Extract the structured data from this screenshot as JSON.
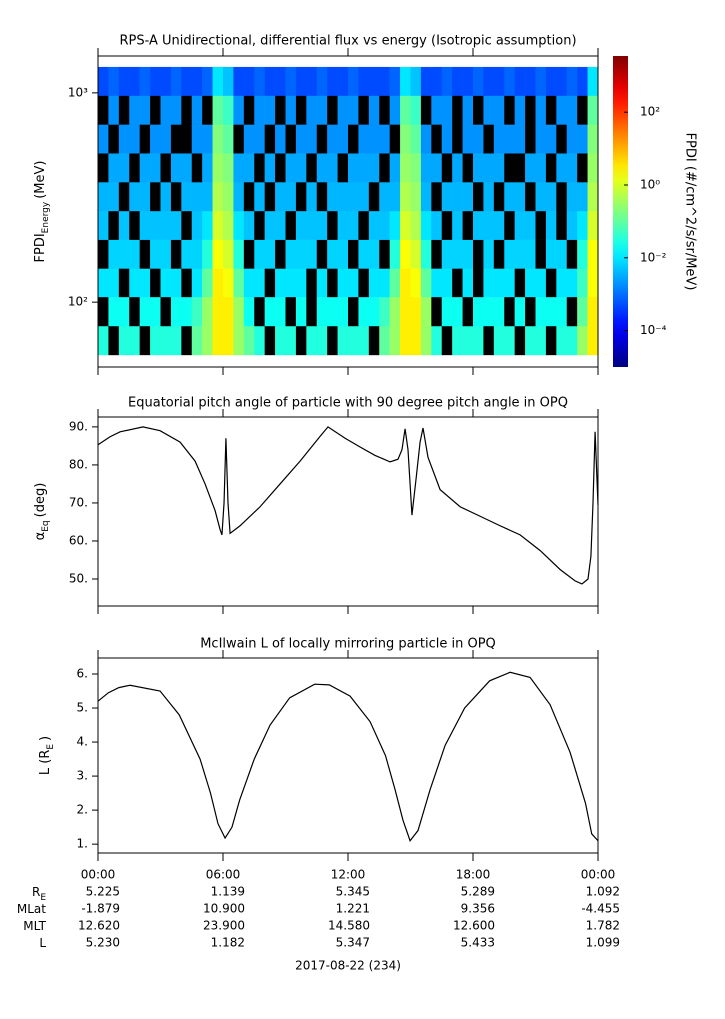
{
  "chart_data": [
    {
      "type": "heatmap",
      "title": "RPS-A Unidirectional, differential flux vs energy (Isotropic assumption)",
      "ylabel": {
        "text": "FPDI",
        "subscript": "Energy",
        "unit": "(MeV)"
      },
      "xlim": [
        0,
        24
      ],
      "xticks": [
        0,
        6,
        12,
        18,
        24
      ],
      "ylim": [
        49,
        1500
      ],
      "ylog": true,
      "yticks": [
        {
          "value": 100,
          "label": "10²"
        },
        {
          "value": 1000,
          "label": "10³"
        }
      ],
      "x_bins": [
        0,
        0.5,
        1,
        1.5,
        2,
        2.5,
        3,
        3.5,
        4,
        4.5,
        5,
        5.5,
        6,
        6.5,
        7,
        7.5,
        8,
        8.5,
        9,
        9.5,
        10,
        10.5,
        11,
        11.5,
        12,
        12.5,
        13,
        13.5,
        14,
        14.5,
        15,
        15.5,
        16,
        16.5,
        17,
        17.5,
        18,
        18.5,
        19,
        19.5,
        20,
        20.5,
        21,
        21.5,
        22,
        22.5,
        23,
        23.5,
        24
      ],
      "y_bins": [
        56,
        77,
        106,
        145,
        199,
        273,
        375,
        515,
        707,
        971,
        1330
      ],
      "z": [
        [
          0.03,
          null,
          0.03,
          0.03,
          null,
          0.03,
          0.03,
          0.03,
          null,
          0.1,
          0.3,
          3,
          3,
          0.3,
          0.1,
          0.03,
          null,
          0.03,
          0.03,
          null,
          0.03,
          0.03,
          null,
          0.03,
          0.03,
          0.03,
          null,
          0.1,
          0.3,
          3,
          3,
          0.3,
          0.03,
          null,
          0.03,
          0.03,
          0.03,
          null,
          0.03,
          0.03,
          null,
          0.03,
          0.03,
          null,
          0.03,
          0.03,
          0.3,
          3
        ],
        [
          null,
          0.02,
          0.02,
          null,
          0.02,
          0.02,
          null,
          0.02,
          0.02,
          0.05,
          0.3,
          3,
          3,
          0.3,
          0.02,
          null,
          0.02,
          0.02,
          null,
          0.02,
          null,
          0.02,
          0.02,
          0.02,
          null,
          0.02,
          0.02,
          0.05,
          0.3,
          3,
          3,
          0.3,
          null,
          0.02,
          0.02,
          null,
          0.02,
          0.02,
          0.02,
          null,
          0.02,
          null,
          0.02,
          0.02,
          0.02,
          null,
          0.1,
          3
        ],
        [
          0.01,
          0.01,
          null,
          0.01,
          0.01,
          null,
          0.01,
          0.01,
          null,
          0.01,
          0.1,
          3,
          2,
          0.1,
          0.01,
          0.01,
          null,
          0.01,
          0.01,
          0.01,
          null,
          0.01,
          null,
          0.01,
          0.01,
          null,
          0.01,
          0.01,
          0.1,
          3,
          2,
          0.1,
          0.01,
          0.01,
          null,
          0.01,
          null,
          0.01,
          0.01,
          0.01,
          null,
          0.01,
          0.01,
          null,
          0.01,
          0.01,
          0.05,
          2
        ],
        [
          null,
          0.007,
          0.007,
          0.007,
          null,
          0.007,
          0.007,
          null,
          0.007,
          0.007,
          0.03,
          2,
          1,
          0.03,
          null,
          0.007,
          0.007,
          null,
          0.007,
          0.007,
          0.007,
          null,
          0.007,
          0.007,
          null,
          0.007,
          0.007,
          null,
          0.03,
          2,
          1,
          0.03,
          null,
          0.007,
          0.007,
          0.007,
          null,
          0.007,
          null,
          0.007,
          0.007,
          0.007,
          null,
          0.007,
          0.007,
          null,
          0.03,
          2
        ],
        [
          0.005,
          null,
          0.005,
          null,
          0.005,
          0.005,
          0.005,
          0.005,
          null,
          0.005,
          0.01,
          1,
          0.5,
          0.01,
          0.005,
          null,
          0.005,
          0.005,
          null,
          0.005,
          0.005,
          0.005,
          null,
          0.005,
          0.005,
          null,
          0.005,
          0.005,
          0.01,
          1,
          0.5,
          0.01,
          0.005,
          null,
          0.005,
          null,
          0.005,
          0.005,
          0.005,
          null,
          0.005,
          0.005,
          null,
          0.005,
          null,
          0.005,
          0.01,
          1
        ],
        [
          0.004,
          0.004,
          null,
          0.004,
          0.004,
          null,
          0.004,
          null,
          0.004,
          0.004,
          0.004,
          0.5,
          0.3,
          0.004,
          null,
          0.004,
          null,
          0.004,
          0.004,
          null,
          0.004,
          null,
          0.004,
          0.004,
          0.004,
          0.004,
          null,
          0.004,
          0.004,
          0.5,
          0.3,
          0.004,
          null,
          0.004,
          0.004,
          0.004,
          null,
          0.004,
          null,
          0.004,
          0.004,
          null,
          0.004,
          0.004,
          null,
          0.004,
          0.004,
          0.5
        ],
        [
          null,
          0.003,
          0.003,
          null,
          0.003,
          0.003,
          null,
          0.003,
          0.003,
          null,
          0.003,
          0.3,
          0.2,
          0.003,
          0.003,
          null,
          0.003,
          null,
          0.003,
          0.003,
          null,
          0.003,
          0.003,
          null,
          0.003,
          0.003,
          0.003,
          null,
          0.003,
          0.3,
          0.2,
          0.003,
          0.003,
          null,
          0.003,
          null,
          0.003,
          0.003,
          0.003,
          null,
          null,
          0.003,
          0.003,
          null,
          0.003,
          0.003,
          null,
          0.3
        ],
        [
          0.002,
          null,
          0.002,
          0.002,
          null,
          0.002,
          0.002,
          null,
          null,
          0.002,
          0.002,
          0.2,
          0.1,
          null,
          0.002,
          0.002,
          null,
          0.002,
          null,
          0.002,
          0.002,
          null,
          0.002,
          0.002,
          null,
          0.002,
          0.002,
          0.002,
          null,
          0.2,
          0.1,
          0.002,
          null,
          0.002,
          null,
          0.002,
          0.002,
          null,
          0.002,
          0.002,
          0.002,
          null,
          0.002,
          0.002,
          null,
          0.002,
          0.002,
          0.2
        ],
        [
          null,
          0.002,
          null,
          0.002,
          0.002,
          null,
          0.002,
          0.002,
          null,
          0.002,
          null,
          0.1,
          0.05,
          0.002,
          null,
          0.002,
          0.002,
          null,
          0.002,
          null,
          0.002,
          0.002,
          null,
          0.002,
          0.002,
          null,
          0.002,
          null,
          0.002,
          0.1,
          0.05,
          null,
          0.002,
          0.002,
          null,
          0.002,
          null,
          0.002,
          0.002,
          null,
          0.002,
          null,
          0.002,
          null,
          0.002,
          0.002,
          null,
          0.1
        ],
        [
          0.0005,
          0.0008,
          0.0005,
          0.0005,
          0.0008,
          0.0005,
          0.0005,
          0.0008,
          0.0005,
          0.0005,
          0.0008,
          0.01,
          0.005,
          0.0005,
          0.0005,
          0.0008,
          0.0005,
          0.0005,
          0.0008,
          0.0005,
          0.0005,
          0.0008,
          0.0005,
          0.0005,
          0.0008,
          0.0005,
          0.0005,
          0.0005,
          0.0008,
          0.01,
          0.005,
          0.0005,
          0.0005,
          0.0008,
          0.0005,
          0.0005,
          0.0008,
          0.0005,
          0.0005,
          0.0008,
          0.0005,
          0.0005,
          0.0008,
          0.0005,
          0.0005,
          0.0008,
          0.0005,
          0.01
        ]
      ],
      "colorbar": {
        "lim": [
          1e-05,
          3500
        ],
        "label": "FPDI (#/cm^2/s/sr/MeV)",
        "ticks": [
          {
            "value": 0.0001,
            "label": "10⁻⁴"
          },
          {
            "value": 0.01,
            "label": "10⁻²"
          },
          {
            "value": 1,
            "label": "10⁰"
          },
          {
            "value": 100,
            "label": "10²"
          }
        ]
      }
    },
    {
      "type": "line",
      "title": "Equatorial pitch angle of particle with 90 degree pitch angle in OPQ",
      "ylabel": {
        "text": "α",
        "subscript": "Eq",
        "unit": "(deg)"
      },
      "xlim": [
        0,
        24
      ],
      "xticks": [
        0,
        6,
        12,
        18,
        24
      ],
      "ylim": [
        42.9,
        92.6
      ],
      "yticks": [
        {
          "value": 50,
          "label": "50."
        },
        {
          "value": 60,
          "label": "60."
        },
        {
          "value": 70,
          "label": "70."
        },
        {
          "value": 80,
          "label": "80."
        },
        {
          "value": 90,
          "label": "90."
        }
      ],
      "color": "#000000",
      "x": [
        0,
        0.58,
        1.06,
        2.16,
        2.98,
        3.94,
        4.66,
        5.14,
        5.62,
        5.86,
        5.95,
        6.05,
        6.14,
        6.24,
        6.34,
        6.82,
        7.78,
        8.74,
        9.7,
        10.66,
        11.04,
        11.86,
        12.58,
        13.3,
        14.02,
        14.4,
        14.59,
        14.74,
        14.88,
        14.98,
        15.07,
        15.26,
        15.46,
        15.6,
        15.84,
        16.42,
        17.38,
        18.34,
        19.3,
        20.26,
        21.22,
        22.18,
        22.9,
        23.23,
        23.52,
        23.66,
        23.76,
        23.86,
        24
      ],
      "values": [
        85.3,
        87.4,
        88.7,
        90,
        89,
        86,
        81,
        75,
        68,
        63,
        61.6,
        70,
        87,
        70,
        62,
        64,
        69,
        75,
        81,
        87.5,
        90,
        87,
        84.7,
        82.5,
        80.8,
        81.5,
        84,
        89.5,
        84,
        75,
        66.8,
        76,
        86,
        89.7,
        82,
        73.5,
        69,
        66.5,
        64,
        61.6,
        57.5,
        52.5,
        49.5,
        48.7,
        50,
        56,
        70,
        88.7,
        69.5
      ]
    },
    {
      "type": "line",
      "title": "McIlwain L of locally mirroring particle in OPQ",
      "ylabel": {
        "text": "L (R",
        "subscript": "E",
        "unit": ")"
      },
      "xlim": [
        0,
        24
      ],
      "xticks": [
        {
          "value": 0,
          "label": "00:00"
        },
        {
          "value": 6,
          "label": "06:00"
        },
        {
          "value": 12,
          "label": "12:00"
        },
        {
          "value": 18,
          "label": "18:00"
        },
        {
          "value": 24,
          "label": "00:00"
        }
      ],
      "ylim": [
        0.74,
        6.47
      ],
      "yticks": [
        {
          "value": 1,
          "label": "1."
        },
        {
          "value": 2,
          "label": "2."
        },
        {
          "value": 3,
          "label": "3."
        },
        {
          "value": 4,
          "label": "4."
        },
        {
          "value": 5,
          "label": "5."
        },
        {
          "value": 6,
          "label": "6."
        }
      ],
      "color": "#000000",
      "x": [
        0,
        0.5,
        1,
        1.54,
        2.98,
        3.9,
        4.9,
        5.4,
        5.76,
        6.1,
        6.43,
        6.8,
        7.5,
        8.26,
        9.2,
        10.4,
        11.1,
        12.1,
        13.06,
        13.8,
        14.26,
        14.64,
        14.98,
        15.36,
        15.94,
        16.66,
        17.6,
        18.8,
        19.78,
        20.74,
        21.7,
        22.66,
        23.4,
        23.7,
        24
      ],
      "values": [
        5.2,
        5.45,
        5.6,
        5.67,
        5.5,
        4.8,
        3.5,
        2.5,
        1.6,
        1.18,
        1.5,
        2.3,
        3.5,
        4.5,
        5.3,
        5.7,
        5.68,
        5.35,
        4.6,
        3.6,
        2.6,
        1.7,
        1.1,
        1.4,
        2.6,
        3.9,
        5,
        5.8,
        6.05,
        5.9,
        5.1,
        3.7,
        2.2,
        1.3,
        1.1
      ]
    }
  ],
  "ephemeris": {
    "rows": [
      {
        "label": "R",
        "label_sub": "E",
        "values": [
          "5.225",
          "1.139",
          "5.345",
          "5.289",
          "1.092"
        ]
      },
      {
        "label": "MLat",
        "values": [
          "-1.879",
          "10.900",
          "1.221",
          "9.356",
          "-4.455"
        ]
      },
      {
        "label": "MLT",
        "values": [
          "12.620",
          "23.900",
          "14.580",
          "12.600",
          "1.782"
        ]
      },
      {
        "label": "L",
        "values": [
          "5.230",
          "1.182",
          "5.347",
          "5.433",
          "1.099"
        ]
      }
    ],
    "date": "2017-08-22 (234)"
  }
}
